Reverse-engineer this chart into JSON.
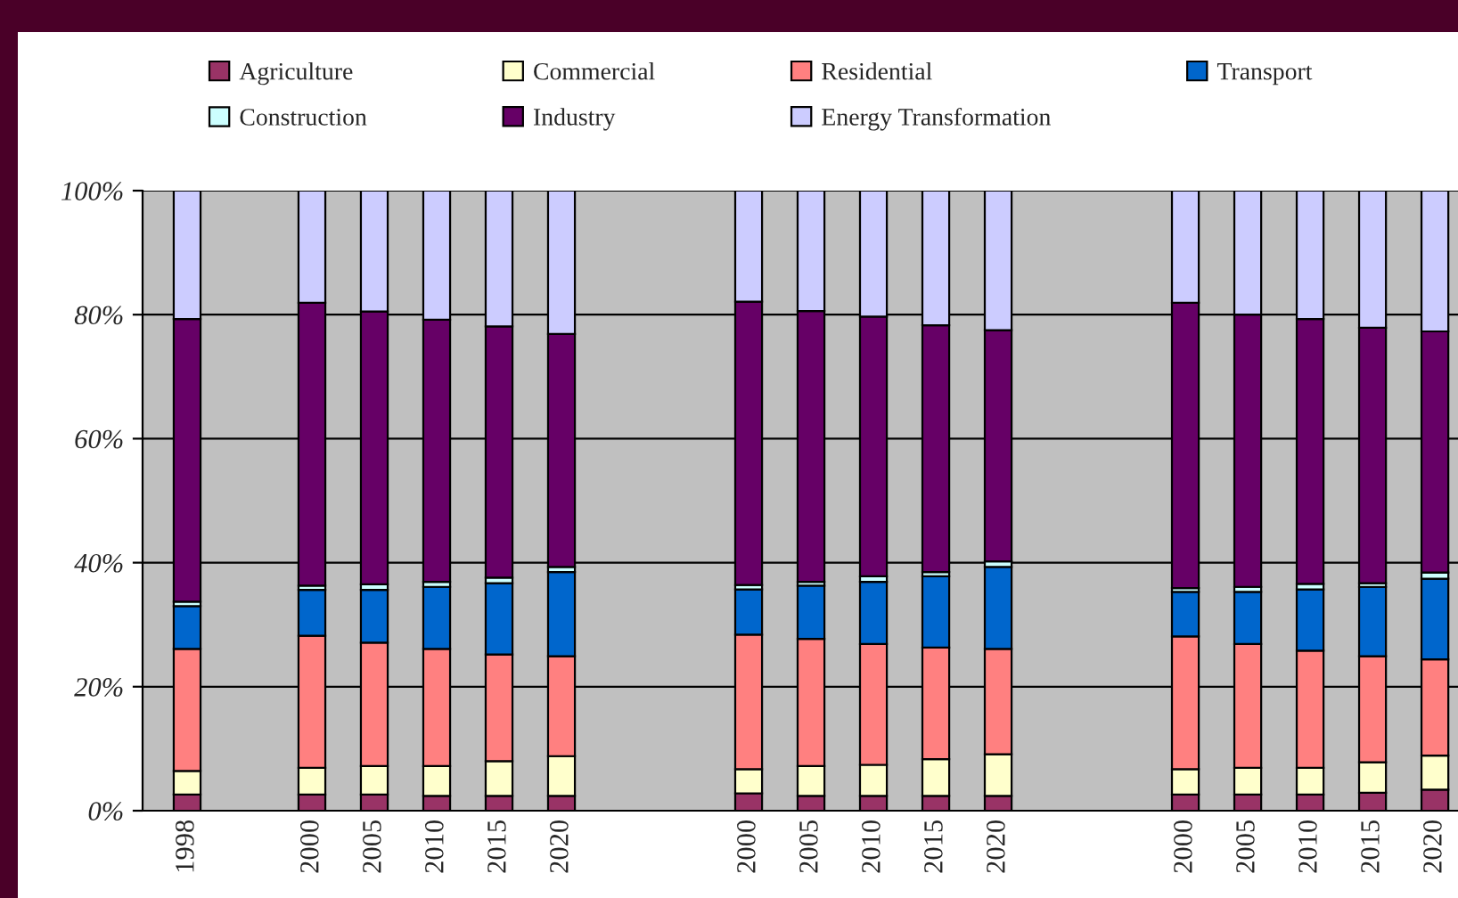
{
  "chart_data": {
    "type": "bar",
    "stacked": true,
    "legend": "top",
    "grid": "y",
    "categories": [
      "1998",
      null,
      "2000",
      "2005",
      "2010",
      "2015",
      "2020",
      null,
      null,
      "2000",
      "2005",
      "2010",
      "2015",
      "2020",
      null,
      null,
      "2000",
      "2005",
      "2010",
      "2015",
      "2020"
    ],
    "ylim": [
      0,
      100
    ],
    "yticks": [
      {
        "value": 0,
        "label": "0%"
      },
      {
        "value": 20,
        "label": "20%"
      },
      {
        "value": 40,
        "label": "40%"
      },
      {
        "value": 60,
        "label": "60%"
      },
      {
        "value": 80,
        "label": "80%"
      },
      {
        "value": 100,
        "label": "100%"
      }
    ],
    "series": [
      {
        "name": "Agriculture",
        "color": "#993366",
        "values": [
          2.6,
          null,
          2.6,
          2.6,
          2.4,
          2.4,
          2.4,
          null,
          null,
          2.8,
          2.4,
          2.4,
          2.4,
          2.4,
          null,
          null,
          2.6,
          2.6,
          2.6,
          2.9,
          3.4
        ]
      },
      {
        "name": "Commercial",
        "color": "#ffffcc",
        "values": [
          3.8,
          null,
          4.3,
          4.6,
          4.8,
          5.6,
          6.4,
          null,
          null,
          3.9,
          4.8,
          5.0,
          5.9,
          6.7,
          null,
          null,
          4.1,
          4.3,
          4.3,
          4.9,
          5.5
        ]
      },
      {
        "name": "Residential",
        "color": "#ff8080",
        "values": [
          19.7,
          null,
          21.3,
          19.9,
          18.9,
          17.2,
          16.1,
          null,
          null,
          21.7,
          20.5,
          19.5,
          18.0,
          17.0,
          null,
          null,
          21.4,
          20.0,
          18.9,
          17.1,
          15.5
        ]
      },
      {
        "name": "Transport",
        "color": "#0066cc",
        "values": [
          6.9,
          null,
          7.4,
          8.5,
          10.0,
          11.5,
          13.6,
          null,
          null,
          7.3,
          8.6,
          10.0,
          11.5,
          13.2,
          null,
          null,
          7.2,
          8.4,
          9.9,
          11.2,
          13.0
        ]
      },
      {
        "name": "Construction",
        "color": "#ccffff",
        "values": [
          0.7,
          null,
          0.7,
          0.9,
          0.8,
          0.9,
          0.8,
          null,
          null,
          0.7,
          0.6,
          0.9,
          0.7,
          0.9,
          null,
          null,
          0.6,
          0.8,
          0.9,
          0.6,
          1.0
        ]
      },
      {
        "name": "Industry",
        "color": "#660066",
        "values": [
          45.6,
          null,
          45.6,
          44.0,
          42.3,
          40.5,
          37.6,
          null,
          null,
          45.7,
          43.7,
          41.9,
          39.8,
          37.3,
          null,
          null,
          46.0,
          43.9,
          42.7,
          41.2,
          38.9
        ]
      },
      {
        "name": "Energy Transformation",
        "color": "#ccccff",
        "values": [
          20.7,
          null,
          18.1,
          19.5,
          20.8,
          21.9,
          23.1,
          null,
          null,
          17.9,
          19.4,
          20.3,
          21.7,
          22.5,
          null,
          null,
          18.1,
          20.0,
          20.7,
          22.1,
          22.7
        ]
      }
    ]
  }
}
